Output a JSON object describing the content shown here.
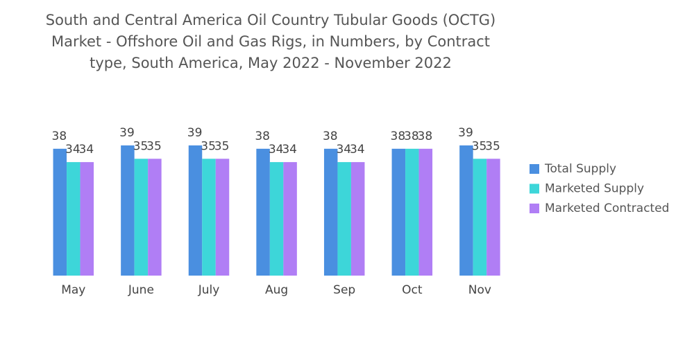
{
  "chart_data": {
    "type": "bar",
    "title": "South and Central America Oil Country Tubular Goods (OCTG) Market - Offshore Oil and Gas Rigs, in Numbers, by Contract type, South America, May 2022 - November 2022",
    "categories": [
      "May",
      "June",
      "July",
      "Aug",
      "Sep",
      "Oct",
      "Nov"
    ],
    "series": [
      {
        "name": "Total Supply",
        "color": "#4a8fe0",
        "values": [
          38,
          39,
          39,
          38,
          38,
          38,
          39
        ]
      },
      {
        "name": "Marketed Supply",
        "color": "#3dd6d9",
        "values": [
          34,
          35,
          35,
          34,
          34,
          38,
          35
        ]
      },
      {
        "name": "Marketed Contracted",
        "color": "#b07ef5",
        "values": [
          34,
          35,
          35,
          34,
          34,
          38,
          35
        ]
      }
    ],
    "legend": "right"
  }
}
